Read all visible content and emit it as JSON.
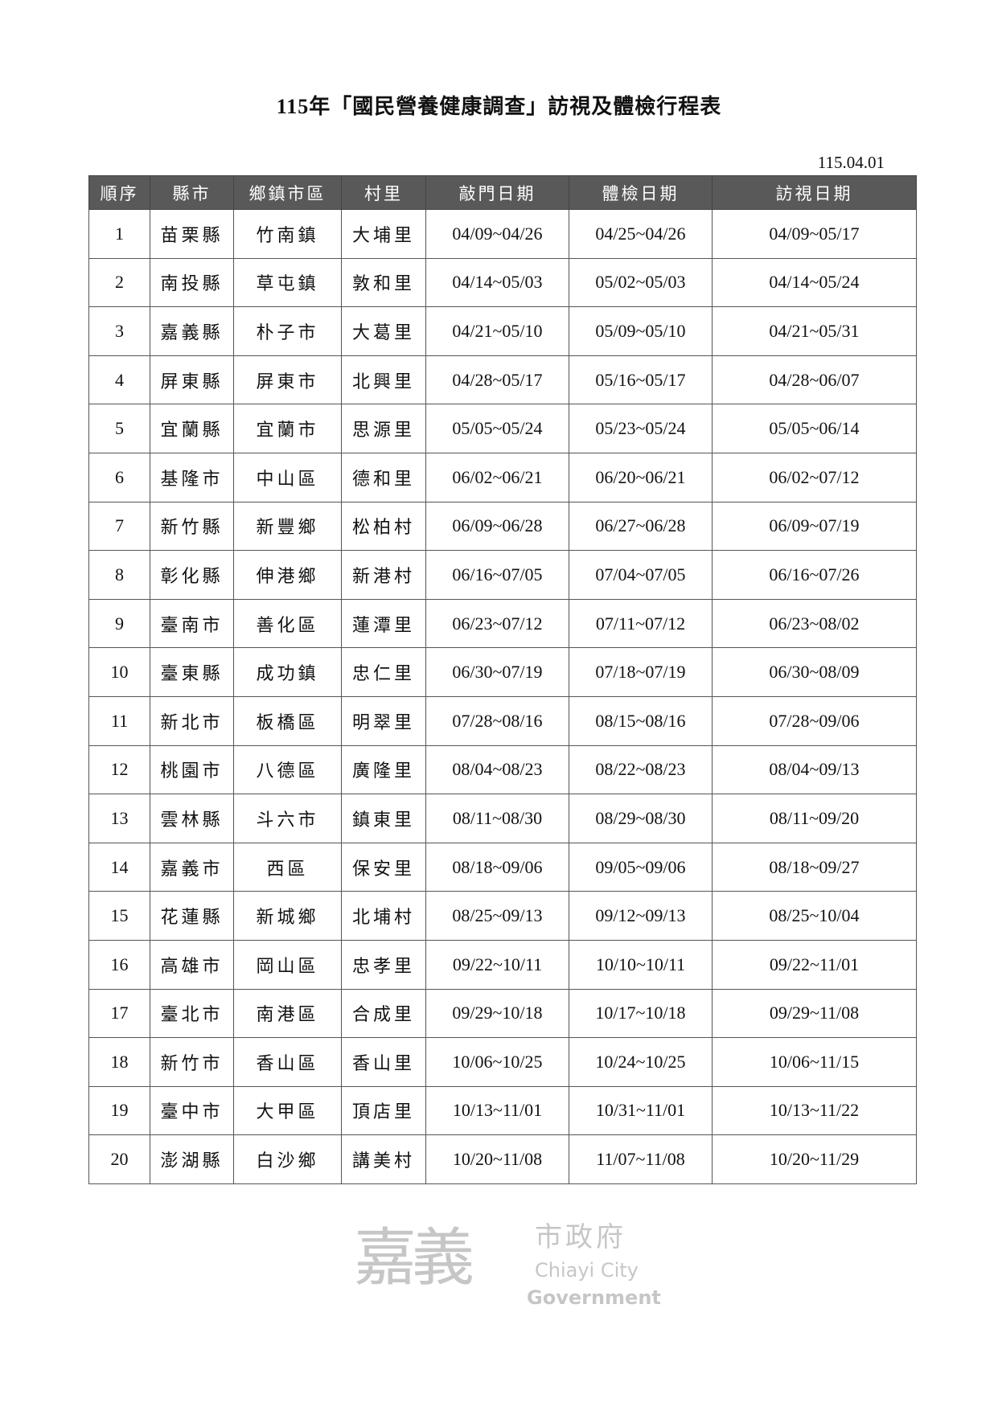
{
  "title": "115年「國民營養健康調查」訪視及體檢行程表",
  "date": "115.04.01",
  "columns": [
    "順序",
    "縣市",
    "鄉鎮市區",
    "村里",
    "敲門日期",
    "體檢日期",
    "訪視日期"
  ],
  "rows": [
    [
      "1",
      "苗栗縣",
      "竹南鎮",
      "大埔里",
      "04/09~04/26",
      "04/25~04/26",
      "04/09~05/17"
    ],
    [
      "2",
      "南投縣",
      "草屯鎮",
      "敦和里",
      "04/14~05/03",
      "05/02~05/03",
      "04/14~05/24"
    ],
    [
      "3",
      "嘉義縣",
      "朴子市",
      "大葛里",
      "04/21~05/10",
      "05/09~05/10",
      "04/21~05/31"
    ],
    [
      "4",
      "屏東縣",
      "屏東市",
      "北興里",
      "04/28~05/17",
      "05/16~05/17",
      "04/28~06/07"
    ],
    [
      "5",
      "宜蘭縣",
      "宜蘭市",
      "思源里",
      "05/05~05/24",
      "05/23~05/24",
      "05/05~06/14"
    ],
    [
      "6",
      "基隆市",
      "中山區",
      "德和里",
      "06/02~06/21",
      "06/20~06/21",
      "06/02~07/12"
    ],
    [
      "7",
      "新竹縣",
      "新豐鄉",
      "松柏村",
      "06/09~06/28",
      "06/27~06/28",
      "06/09~07/19"
    ],
    [
      "8",
      "彰化縣",
      "伸港鄉",
      "新港村",
      "06/16~07/05",
      "07/04~07/05",
      "06/16~07/26"
    ],
    [
      "9",
      "臺南市",
      "善化區",
      "蓮潭里",
      "06/23~07/12",
      "07/11~07/12",
      "06/23~08/02"
    ],
    [
      "10",
      "臺東縣",
      "成功鎮",
      "忠仁里",
      "06/30~07/19",
      "07/18~07/19",
      "06/30~08/09"
    ],
    [
      "11",
      "新北市",
      "板橋區",
      "明翠里",
      "07/28~08/16",
      "08/15~08/16",
      "07/28~09/06"
    ],
    [
      "12",
      "桃園市",
      "八德區",
      "廣隆里",
      "08/04~08/23",
      "08/22~08/23",
      "08/04~09/13"
    ],
    [
      "13",
      "雲林縣",
      "斗六市",
      "鎮東里",
      "08/11~08/30",
      "08/29~08/30",
      "08/11~09/20"
    ],
    [
      "14",
      "嘉義市",
      "西區",
      "保安里",
      "08/18~09/06",
      "09/05~09/06",
      "08/18~09/27"
    ],
    [
      "15",
      "花蓮縣",
      "新城鄉",
      "北埔村",
      "08/25~09/13",
      "09/12~09/13",
      "08/25~10/04"
    ],
    [
      "16",
      "高雄市",
      "岡山區",
      "忠孝里",
      "09/22~10/11",
      "10/10~10/11",
      "09/22~11/01"
    ],
    [
      "17",
      "臺北市",
      "南港區",
      "合成里",
      "09/29~10/18",
      "10/17~10/18",
      "09/29~11/08"
    ],
    [
      "18",
      "新竹市",
      "香山區",
      "香山里",
      "10/06~10/25",
      "10/24~10/25",
      "10/06~11/15"
    ],
    [
      "19",
      "臺中市",
      "大甲區",
      "頂店里",
      "10/13~11/01",
      "10/31~11/01",
      "10/13~11/22"
    ],
    [
      "20",
      "澎湖縣",
      "白沙鄉",
      "講美村",
      "10/20~11/08",
      "11/07~11/08",
      "10/20~11/29"
    ]
  ],
  "watermark": {
    "zh_big": "嘉義",
    "zh_small": "市政府",
    "en_line1": "Chiayi City",
    "en_line2": "Government"
  }
}
